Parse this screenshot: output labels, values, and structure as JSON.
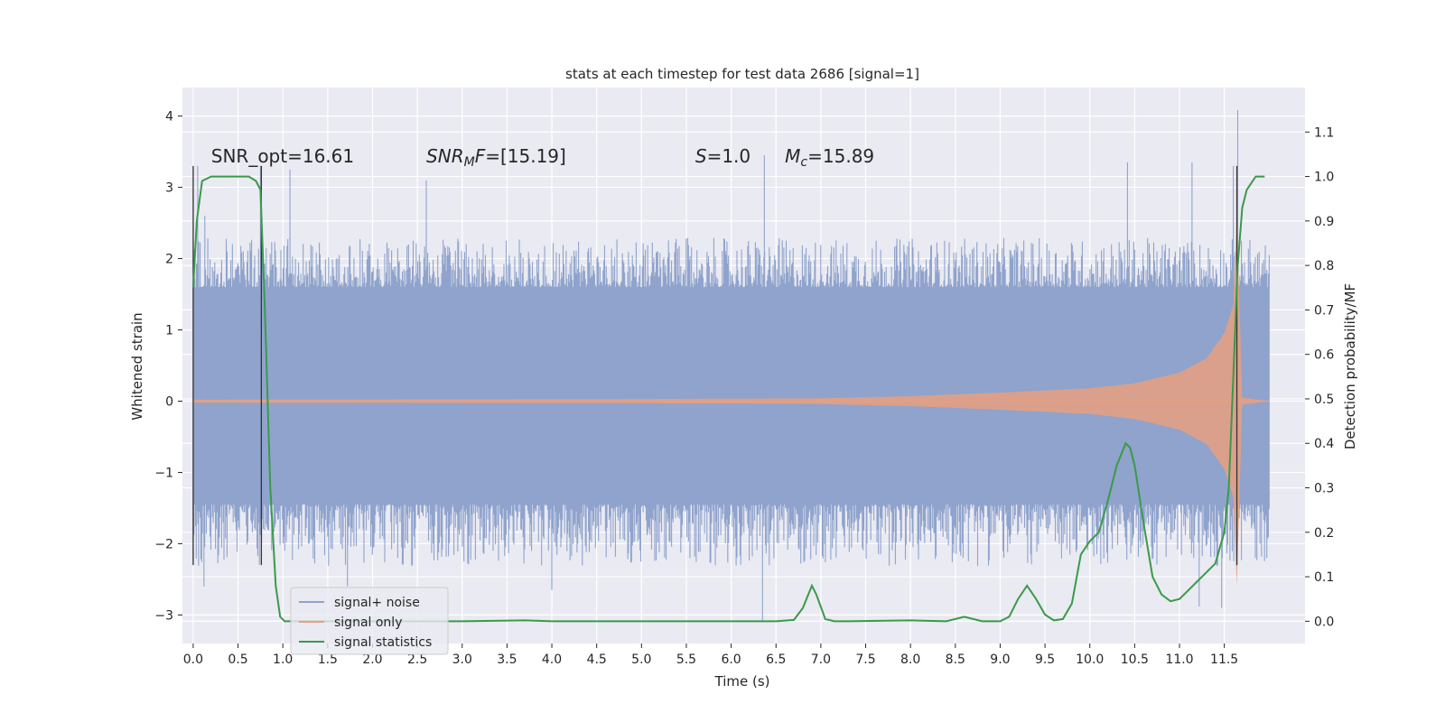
{
  "chart_data": {
    "type": "line",
    "title": "stats at each timestep for test data 2686 [signal=1]",
    "xlabel": "Time (s)",
    "ylabel": "Whitened strain",
    "y2label": "Detection probability/MF",
    "xlim": [
      -0.12,
      12.4
    ],
    "ylim": [
      -3.4,
      4.4
    ],
    "y2lim": [
      -0.05,
      1.2
    ],
    "x_ticks": [
      "0.0",
      "0.5",
      "1.0",
      "1.5",
      "2.0",
      "2.5",
      "3.0",
      "3.5",
      "4.0",
      "4.5",
      "5.0",
      "5.5",
      "6.0",
      "6.5",
      "7.0",
      "7.5",
      "8.0",
      "8.5",
      "9.0",
      "9.5",
      "10.0",
      "10.5",
      "11.0",
      "11.5"
    ],
    "x_tick_values": [
      0,
      0.5,
      1,
      1.5,
      2,
      2.5,
      3,
      3.5,
      4,
      4.5,
      5,
      5.5,
      6,
      6.5,
      7,
      7.5,
      8,
      8.5,
      9,
      9.5,
      10,
      10.5,
      11,
      11.5
    ],
    "y_ticks": [
      "4",
      "3",
      "2",
      "1",
      "0",
      "−1",
      "−2",
      "−3"
    ],
    "y_tick_values": [
      4,
      3,
      2,
      1,
      0,
      -1,
      -2,
      -3
    ],
    "y2_ticks": [
      "1.1",
      "1.0",
      "0.9",
      "0.8",
      "0.7",
      "0.6",
      "0.5",
      "0.4",
      "0.3",
      "0.2",
      "0.1",
      "0.0"
    ],
    "y2_tick_values": [
      1.1,
      1.0,
      0.9,
      0.8,
      0.7,
      0.6,
      0.5,
      0.4,
      0.3,
      0.2,
      0.1,
      0.0
    ],
    "annotations": [
      {
        "id": "snr-opt",
        "text": "SNR_opt=16.61",
        "x": 0.2,
        "y": 3.35
      },
      {
        "id": "snr-mf",
        "text": "SNR_MF=[15.19]",
        "x": 2.6,
        "y": 3.35
      },
      {
        "id": "s-value",
        "text": "S=1.0",
        "x": 5.6,
        "y": 3.35
      },
      {
        "id": "mc-value",
        "text": "M_c=15.89",
        "x": 6.6,
        "y": 3.35
      }
    ],
    "vertical_markers": [
      0.0,
      0.76,
      11.64
    ],
    "legend": {
      "position": "lower-left",
      "entries": [
        "signal+ noise",
        "signal only",
        "signal statistics"
      ]
    },
    "colors": {
      "noise": "#8fa3cc",
      "signal": "#e8a07f",
      "stats": "#3a9a4a",
      "marker": "#333333",
      "background": "#eaeaf2",
      "grid": "#ffffff"
    },
    "series": [
      {
        "name": "signal+ noise",
        "axis": "left",
        "envelope": {
          "t_start": 0.0,
          "t_end": 12.0,
          "dense_low": -1.45,
          "dense_high": 1.6,
          "typical_peak_high": 2.2,
          "typical_peak_low": -2.2,
          "extreme_peaks": [
            {
              "t": 0.05,
              "y": 3.3
            },
            {
              "t": 0.13,
              "y": 2.6
            },
            {
              "t": 0.75,
              "y": 3.3
            },
            {
              "t": 1.08,
              "y": 3.25
            },
            {
              "t": 2.6,
              "y": 3.1
            },
            {
              "t": 6.37,
              "y": 3.45
            },
            {
              "t": 10.42,
              "y": 3.35
            },
            {
              "t": 11.14,
              "y": 3.35
            },
            {
              "t": 11.6,
              "y": 3.3
            },
            {
              "t": 11.65,
              "y": 4.08
            },
            {
              "t": 6.35,
              "y": -3.08
            },
            {
              "t": 11.22,
              "y": -2.88
            },
            {
              "t": 11.47,
              "y": -2.9
            },
            {
              "t": 0.12,
              "y": -2.6
            },
            {
              "t": 1.72,
              "y": -2.6
            },
            {
              "t": 4.0,
              "y": -2.65
            }
          ]
        }
      },
      {
        "name": "signal only",
        "axis": "left",
        "chirp": {
          "t_start": 0.0,
          "t_merge": 11.64,
          "t_end": 12.0,
          "x_amp": [
            0,
            5,
            7,
            8,
            9,
            10,
            10.5,
            11,
            11.3,
            11.5,
            11.6,
            11.64,
            11.7,
            12.0
          ],
          "amp": [
            0.02,
            0.03,
            0.04,
            0.07,
            0.12,
            0.18,
            0.25,
            0.4,
            0.6,
            0.95,
            1.35,
            2.6,
            0.05,
            0.0
          ]
        }
      },
      {
        "name": "signal statistics",
        "axis": "right",
        "x": [
          0.0,
          0.04,
          0.1,
          0.2,
          0.35,
          0.5,
          0.62,
          0.7,
          0.75,
          0.8,
          0.86,
          0.92,
          0.97,
          1.02,
          1.1,
          2.0,
          3.0,
          3.7,
          4.0,
          5.0,
          6.0,
          6.5,
          6.7,
          6.8,
          6.9,
          6.95,
          7.05,
          7.15,
          7.3,
          8.0,
          8.4,
          8.6,
          8.8,
          9.0,
          9.1,
          9.2,
          9.3,
          9.4,
          9.5,
          9.6,
          9.7,
          9.8,
          9.9,
          10.0,
          10.1,
          10.2,
          10.3,
          10.4,
          10.45,
          10.5,
          10.6,
          10.7,
          10.8,
          10.9,
          11.0,
          11.1,
          11.2,
          11.3,
          11.4,
          11.5,
          11.55,
          11.6,
          11.65,
          11.7,
          11.75,
          11.85,
          11.95
        ],
        "y": [
          0.75,
          0.9,
          0.99,
          1.0,
          1.0,
          1.0,
          1.0,
          0.99,
          0.97,
          0.7,
          0.3,
          0.08,
          0.01,
          0.0,
          0.0,
          0.0,
          0.0,
          0.002,
          0.0,
          0.0,
          0.0,
          0.0,
          0.003,
          0.03,
          0.08,
          0.06,
          0.005,
          0.0,
          0.0,
          0.002,
          0.0,
          0.01,
          0.0,
          0.0,
          0.01,
          0.05,
          0.08,
          0.05,
          0.015,
          0.002,
          0.005,
          0.04,
          0.15,
          0.18,
          0.2,
          0.27,
          0.35,
          0.4,
          0.39,
          0.35,
          0.22,
          0.1,
          0.06,
          0.045,
          0.05,
          0.07,
          0.09,
          0.11,
          0.13,
          0.2,
          0.3,
          0.55,
          0.8,
          0.93,
          0.97,
          1.0,
          1.0
        ]
      }
    ]
  }
}
